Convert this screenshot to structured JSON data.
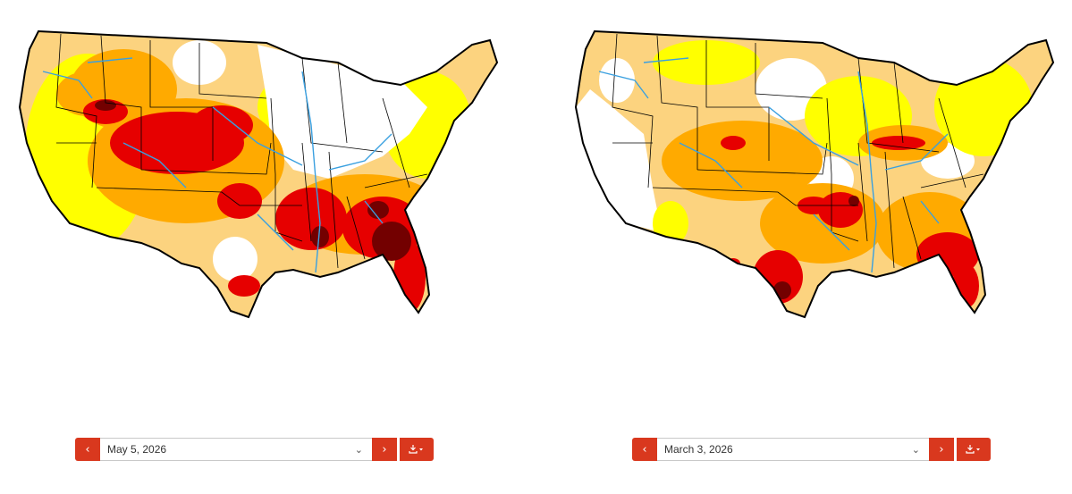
{
  "maps": [
    {
      "selected_date": "May 5, 2026",
      "prev_icon": "chevron-left-icon",
      "next_icon": "chevron-right-icon",
      "download_icon": "download-icon"
    },
    {
      "selected_date": "March 3, 2026",
      "prev_icon": "chevron-left-icon",
      "next_icon": "chevron-right-icon",
      "download_icon": "download-icon"
    }
  ],
  "colors": {
    "accent": "#d9381e",
    "drought_D0": "#ffff00",
    "drought_D1": "#fcd37f",
    "drought_D2": "#ffaa00",
    "drought_D3": "#e60000",
    "drought_D4": "#730000",
    "rivers": "#3aa0e0"
  }
}
